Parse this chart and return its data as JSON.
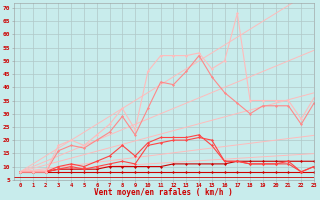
{
  "x": [
    0,
    1,
    2,
    3,
    4,
    5,
    6,
    7,
    8,
    9,
    10,
    11,
    12,
    13,
    14,
    15,
    16,
    17,
    18,
    19,
    20,
    21,
    22,
    23
  ],
  "bg_color": "#c8ecec",
  "grid_color": "#b0c8c8",
  "xlabel": "Vent moyen/en rafales ( km/h )",
  "ylabel_ticks": [
    5,
    10,
    15,
    20,
    25,
    30,
    35,
    40,
    45,
    50,
    55,
    60,
    65,
    70
  ],
  "ylim": [
    5,
    72
  ],
  "xlim": [
    -0.5,
    23
  ],
  "straight_top1": [
    8.0,
    9.3,
    10.6,
    11.9,
    13.2,
    14.5,
    15.8,
    17.1,
    18.4,
    19.7,
    21.0,
    22.3,
    23.6,
    24.9,
    26.2,
    27.5,
    28.8,
    30.1,
    31.4,
    32.7,
    34.0,
    35.3,
    36.6,
    37.9
  ],
  "straight_top2": [
    8.0,
    10.0,
    12.0,
    14.0,
    16.0,
    18.0,
    20.0,
    22.0,
    24.0,
    26.0,
    28.0,
    30.0,
    32.0,
    34.0,
    36.0,
    38.0,
    40.0,
    42.0,
    44.0,
    46.0,
    48.0,
    50.0,
    52.0,
    54.0
  ],
  "straight_top3": [
    8.0,
    11.0,
    14.0,
    17.0,
    20.0,
    23.0,
    26.0,
    29.0,
    32.0,
    35.0,
    38.0,
    41.0,
    44.0,
    47.0,
    50.0,
    53.0,
    56.0,
    59.0,
    62.0,
    65.0,
    68.0,
    71.0,
    74.0,
    77.0
  ],
  "straight_bot1": [
    8.0,
    8.6,
    9.2,
    9.8,
    10.4,
    11.0,
    11.6,
    12.2,
    12.8,
    13.4,
    14.0,
    14.6,
    15.2,
    15.8,
    16.4,
    17.0,
    17.6,
    18.2,
    18.8,
    19.4,
    20.0,
    20.6,
    21.2,
    21.8
  ],
  "straight_bot2": [
    8.0,
    8.3,
    8.6,
    8.9,
    9.2,
    9.5,
    9.8,
    10.1,
    10.4,
    10.7,
    11.0,
    11.3,
    11.6,
    11.9,
    12.2,
    12.5,
    12.8,
    13.1,
    13.4,
    13.7,
    14.0,
    14.3,
    14.6,
    14.9
  ],
  "wiggly1": [
    8,
    8,
    8,
    8,
    8,
    8,
    8,
    8,
    8,
    8,
    8,
    8,
    8,
    8,
    8,
    8,
    8,
    8,
    8,
    8,
    8,
    8,
    8,
    8
  ],
  "wiggly2": [
    8,
    8,
    8,
    9,
    9,
    9,
    9,
    10,
    10,
    10,
    10,
    10,
    11,
    11,
    11,
    11,
    11,
    12,
    12,
    12,
    12,
    12,
    12,
    12
  ],
  "wiggly3": [
    8,
    8,
    8,
    9,
    10,
    9,
    10,
    11,
    12,
    11,
    18,
    19,
    20,
    20,
    21,
    20,
    12,
    12,
    11,
    11,
    11,
    11,
    8,
    10
  ],
  "wiggly4": [
    8,
    8,
    8,
    10,
    11,
    10,
    12,
    14,
    18,
    14,
    19,
    21,
    21,
    21,
    22,
    18,
    12,
    12,
    11,
    11,
    11,
    12,
    8,
    10
  ],
  "wiggly5": [
    8,
    8,
    8,
    16,
    18,
    17,
    20,
    23,
    29,
    22,
    32,
    42,
    41,
    46,
    52,
    44,
    38,
    34,
    30,
    33,
    33,
    33,
    26,
    34
  ],
  "wiggly6": [
    8,
    8,
    8,
    18,
    20,
    18,
    22,
    26,
    32,
    24,
    46,
    52,
    52,
    52,
    53,
    47,
    50,
    68,
    35,
    35,
    35,
    35,
    28,
    36
  ],
  "c_pale": "#ffbbbb",
  "c_med": "#ff8888",
  "c_dark": "#ff4444",
  "c_red": "#cc0000"
}
